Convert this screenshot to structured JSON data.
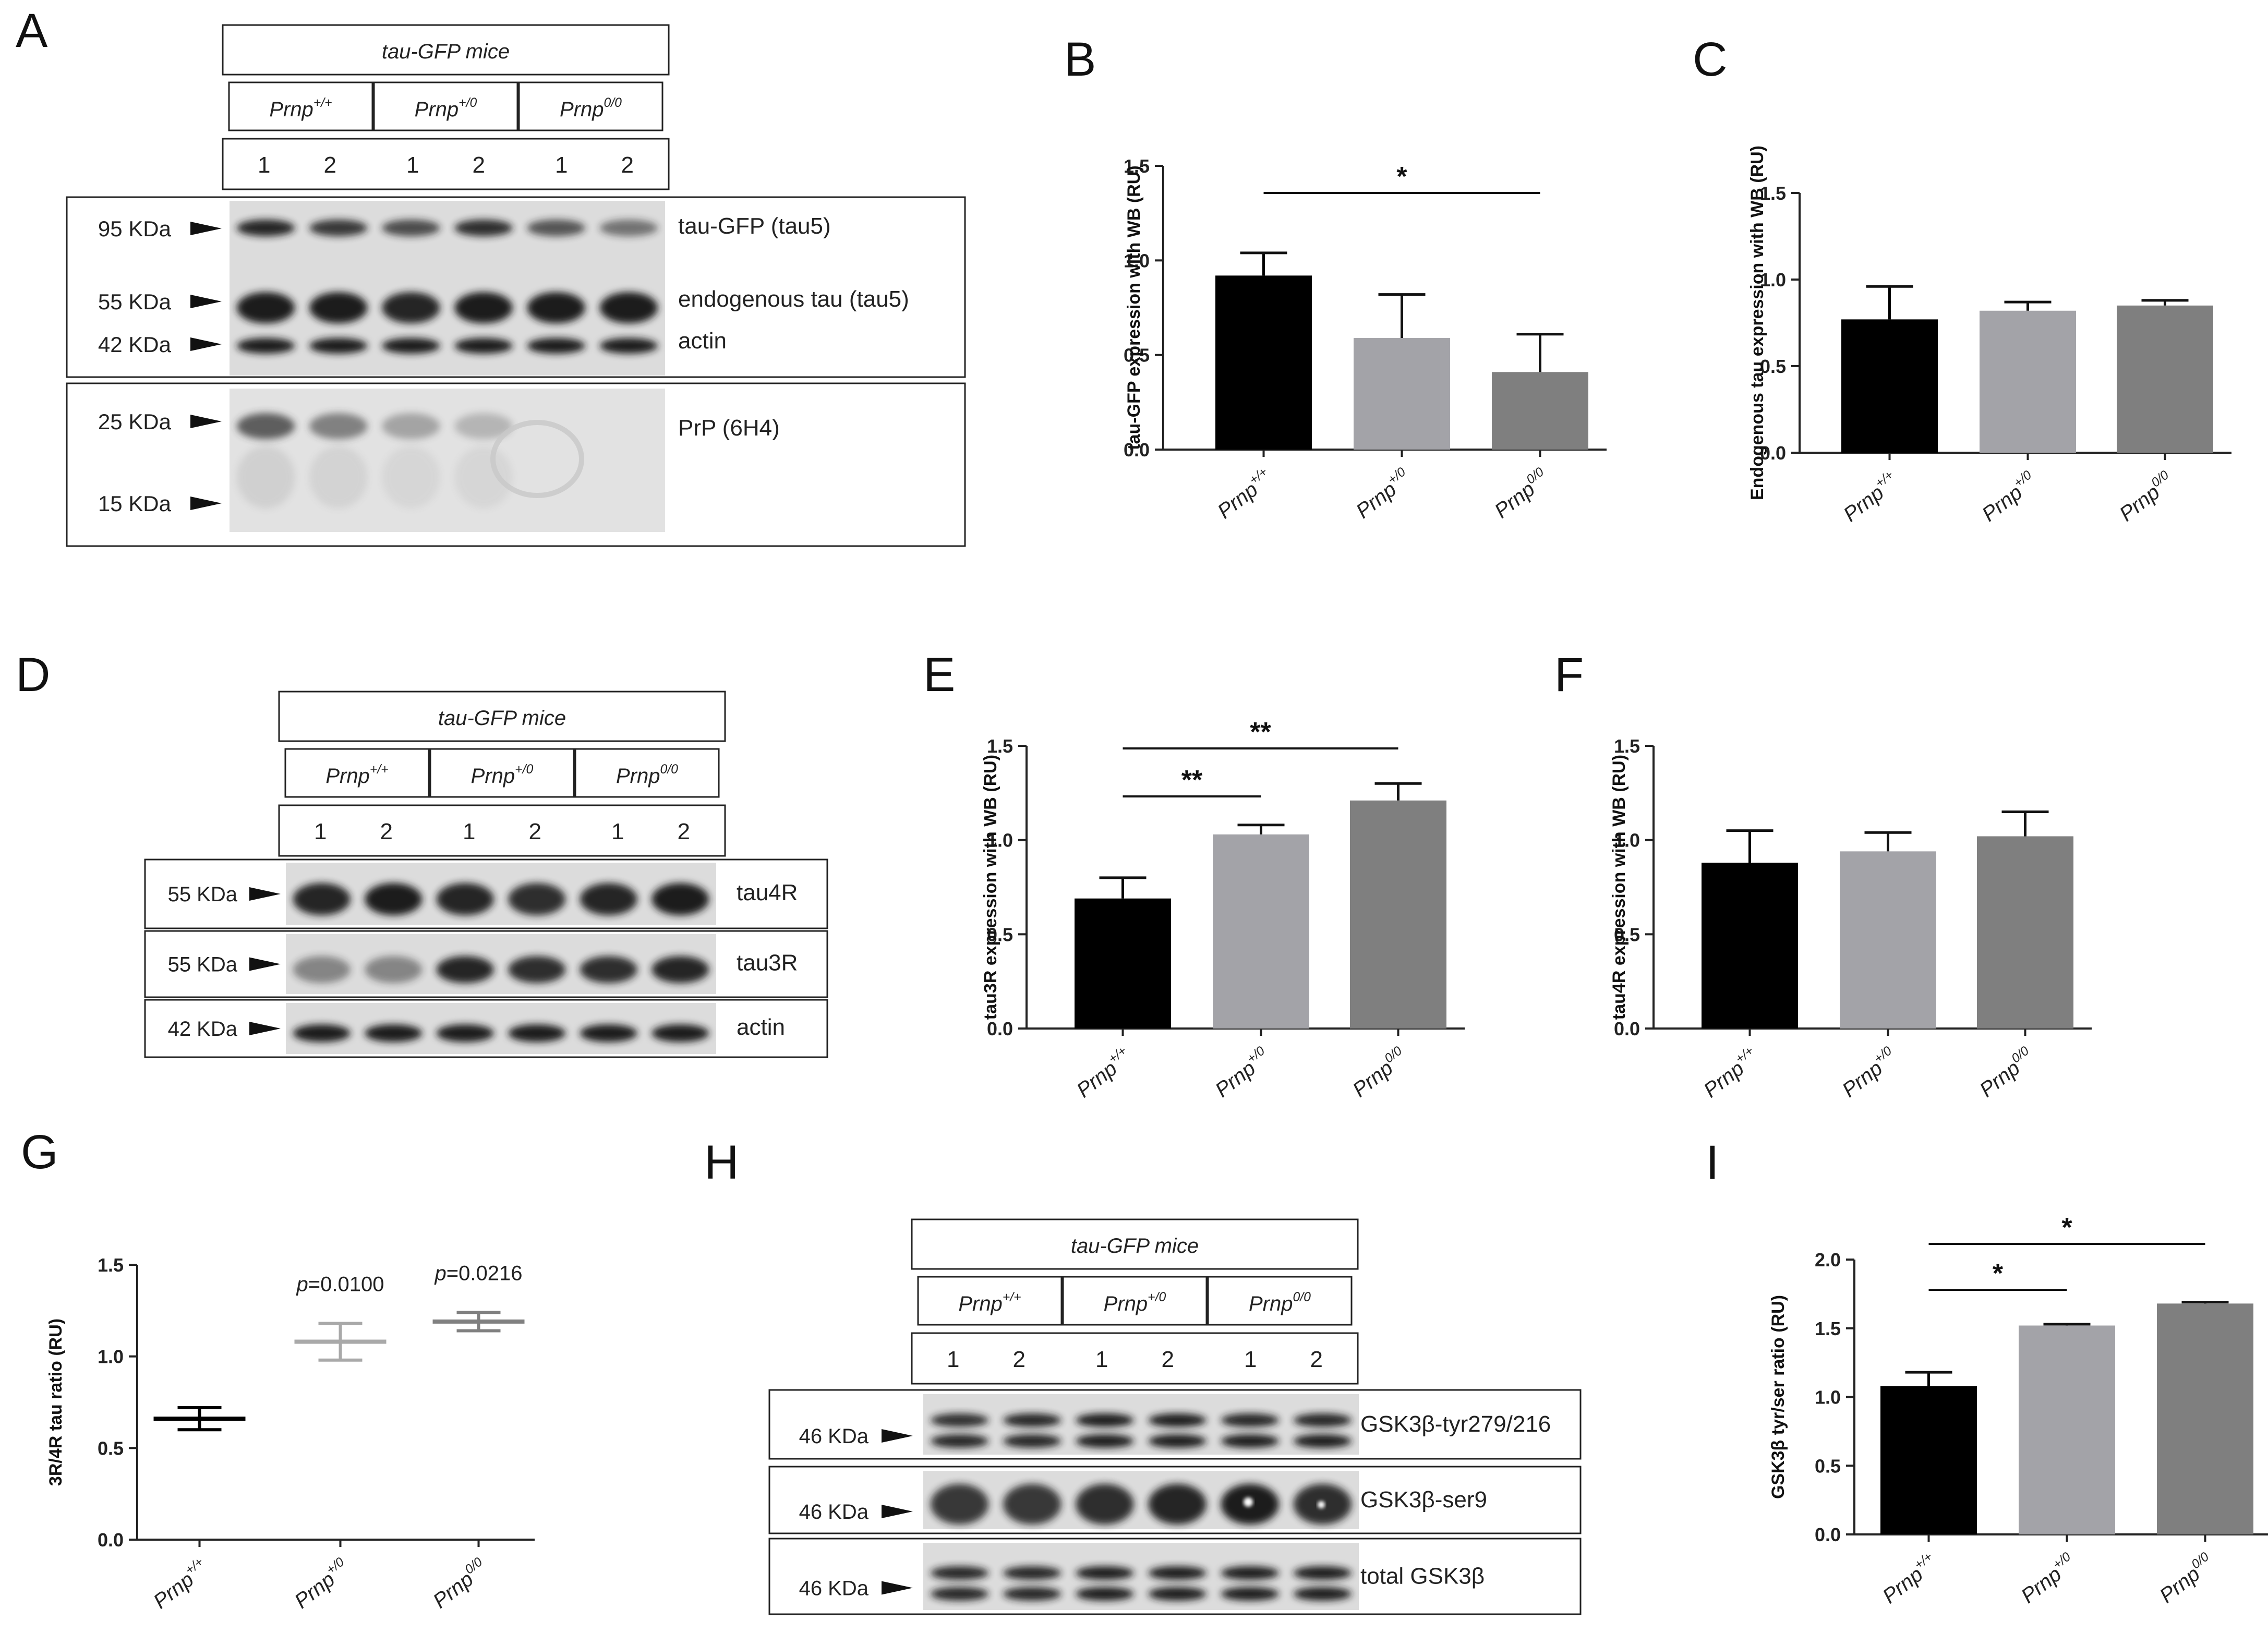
{
  "panels": {
    "A": "A",
    "B": "B",
    "C": "C",
    "D": "D",
    "E": "E",
    "F": "F",
    "G": "G",
    "H": "H",
    "I": "I"
  },
  "blot_common": {
    "mice_label": "tau-GFP mice",
    "genotypes": [
      "Prnp+/+",
      "Prnp+/0",
      "Prnp0/0"
    ],
    "genotype_base": "Prnp",
    "genotype_sups": [
      "+/+",
      "+/0",
      "0/0"
    ],
    "lanes": [
      "1",
      "2",
      "1",
      "2",
      "1",
      "2"
    ]
  },
  "blot_A": {
    "markers_top": [
      "95 KDa",
      "55 KDa",
      "42 KDa"
    ],
    "bands_top": [
      "tau-GFP (tau5)",
      "endogenous tau (tau5)",
      "actin"
    ],
    "markers_bottom": [
      "25 KDa",
      "15 KDa"
    ],
    "bands_bottom": [
      "PrP (6H4)"
    ]
  },
  "blot_D": {
    "rows": [
      {
        "marker": "55 KDa",
        "band": "tau4R"
      },
      {
        "marker": "55 KDa",
        "band": "tau3R"
      },
      {
        "marker": "42 KDa",
        "band": "actin"
      }
    ]
  },
  "blot_H": {
    "rows": [
      {
        "marker": "46 KDa",
        "band": "GSK3β-tyr279/216"
      },
      {
        "marker": "46 KDa",
        "band": "GSK3β-ser9"
      },
      {
        "marker": "46 KDa",
        "band": "total GSK3β"
      }
    ]
  },
  "chart_data": [
    {
      "panel": "B",
      "type": "bar",
      "ylabel": "tau-GFP expression with WB (RU)",
      "categories": [
        "Prnp+/+",
        "Prnp+/0",
        "Prnp0/0"
      ],
      "values": [
        0.92,
        0.59,
        0.41
      ],
      "errors": [
        0.12,
        0.23,
        0.2
      ],
      "ylim": [
        0,
        1.5
      ],
      "yticks": [
        "0.0",
        "0.5",
        "1.0",
        "1.5"
      ],
      "bar_colors": [
        "#000000",
        "#a3a3a8",
        "#7f7f7f"
      ],
      "significance": [
        {
          "from": 0,
          "to": 2,
          "label": "*"
        }
      ]
    },
    {
      "panel": "C",
      "type": "bar",
      "ylabel": "Endogenous tau expression with WB (RU)",
      "categories": [
        "Prnp+/+",
        "Prnp+/0",
        "Prnp0/0"
      ],
      "values": [
        0.77,
        0.82,
        0.85
      ],
      "errors": [
        0.19,
        0.05,
        0.03
      ],
      "ylim": [
        0,
        1.5
      ],
      "yticks": [
        "0.0",
        "0.5",
        "1.0",
        "1.5"
      ],
      "bar_colors": [
        "#000000",
        "#a3a3a8",
        "#7f7f7f"
      ],
      "significance": []
    },
    {
      "panel": "E",
      "type": "bar",
      "ylabel": "tau3R expression with WB (RU)",
      "categories": [
        "Prnp+/+",
        "Prnp+/0",
        "Prnp0/0"
      ],
      "values": [
        0.69,
        1.03,
        1.21
      ],
      "errors": [
        0.11,
        0.05,
        0.09
      ],
      "ylim": [
        0,
        1.5
      ],
      "yticks": [
        "0.0",
        "0.5",
        "1.0",
        "1.5"
      ],
      "bar_colors": [
        "#000000",
        "#a3a3a8",
        "#7f7f7f"
      ],
      "significance": [
        {
          "from": 0,
          "to": 1,
          "label": "**"
        },
        {
          "from": 0,
          "to": 2,
          "label": "**"
        }
      ]
    },
    {
      "panel": "F",
      "type": "bar",
      "ylabel": "tau4R expression with WB (RU)",
      "categories": [
        "Prnp+/+",
        "Prnp+/0",
        "Prnp0/0"
      ],
      "values": [
        0.88,
        0.94,
        1.02
      ],
      "errors": [
        0.17,
        0.1,
        0.13
      ],
      "ylim": [
        0,
        1.5
      ],
      "yticks": [
        "0.0",
        "0.5",
        "1.0",
        "1.5"
      ],
      "bar_colors": [
        "#000000",
        "#a3a3a8",
        "#7f7f7f"
      ],
      "significance": []
    },
    {
      "panel": "G",
      "type": "scatter",
      "ylabel": "3R/4R tau ratio (RU)",
      "categories": [
        "Prnp+/+",
        "Prnp+/0",
        "Prnp0/0"
      ],
      "values": [
        0.66,
        1.08,
        1.19
      ],
      "errors": [
        0.06,
        0.1,
        0.05
      ],
      "ylim": [
        0,
        1.5
      ],
      "yticks": [
        "0.0",
        "0.5",
        "1.0",
        "1.5"
      ],
      "point_colors": [
        "#000000",
        "#a9a9a9",
        "#808080"
      ],
      "annotations": [
        "",
        "p=0.0100",
        "p=0.0216"
      ]
    },
    {
      "panel": "I",
      "type": "bar",
      "ylabel": "GSK3β tyr/ser ratio (RU)",
      "categories": [
        "Prnp+/+",
        "Prnp+/0",
        "Prnp0/0"
      ],
      "values": [
        1.08,
        1.52,
        1.68
      ],
      "errors": [
        0.1,
        0.01,
        0.01
      ],
      "ylim": [
        0,
        2.0
      ],
      "yticks": [
        "0.0",
        "0.5",
        "1.0",
        "1.5",
        "2.0"
      ],
      "bar_colors": [
        "#000000",
        "#a3a3a8",
        "#7f7f7f"
      ],
      "significance": [
        {
          "from": 0,
          "to": 1,
          "label": "*"
        },
        {
          "from": 0,
          "to": 2,
          "label": "*"
        }
      ]
    }
  ]
}
